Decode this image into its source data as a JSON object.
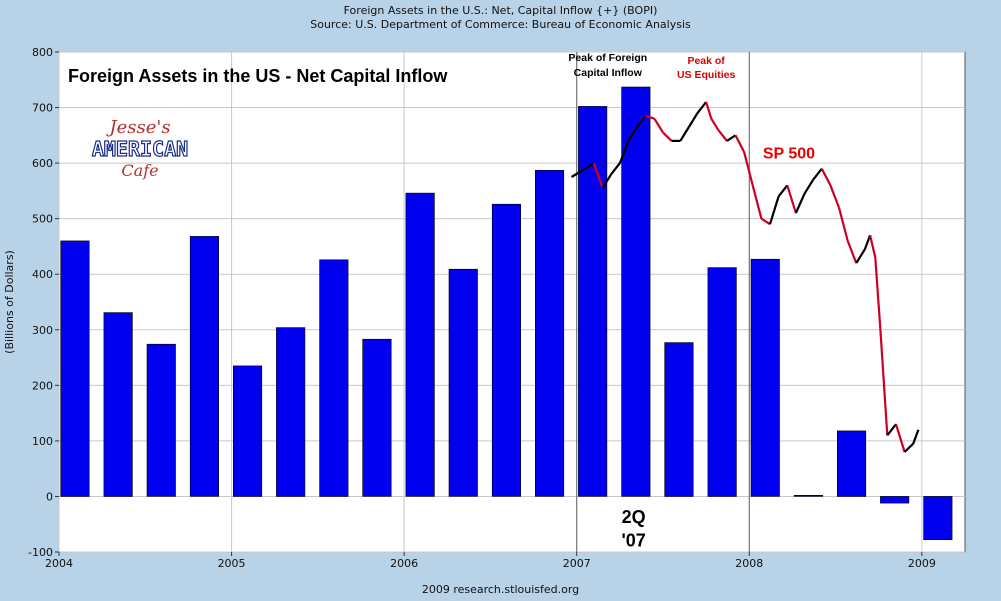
{
  "header": {
    "title": "Foreign Assets in the U.S.: Net, Capital Inflow {+} (BOPI)",
    "source": "Source: U.S. Department of Commerce: Bureau of Economic Analysis"
  },
  "footer": "2009 research.stlouisfed.org",
  "chart_data": {
    "type": "bar",
    "title": "Foreign Assets in the US - Net Capital Inflow",
    "ylabel": "(Billions of Dollars)",
    "xlabel": "",
    "ylim": [
      -100,
      800
    ],
    "yticks": [
      -100,
      0,
      100,
      200,
      300,
      400,
      500,
      600,
      700,
      800
    ],
    "xlim": [
      2004.0,
      2009.25
    ],
    "xticks": [
      2004,
      2005,
      2006,
      2007,
      2008,
      2009
    ],
    "grid": true,
    "bar_color": "#0000ee",
    "series": [
      {
        "quarters": [
          "2004Q1",
          "2004Q2",
          "2004Q3",
          "2004Q4",
          "2005Q1",
          "2005Q2",
          "2005Q3",
          "2005Q4",
          "2006Q1",
          "2006Q2",
          "2006Q3",
          "2006Q4",
          "2007Q1",
          "2007Q2",
          "2007Q3",
          "2007Q4",
          "2008Q1",
          "2008Q2",
          "2008Q3",
          "2008Q4",
          "2009Q1"
        ],
        "x": [
          2004.0,
          2004.25,
          2004.5,
          2004.75,
          2005.0,
          2005.25,
          2005.5,
          2005.75,
          2006.0,
          2006.25,
          2006.5,
          2006.75,
          2007.0,
          2007.25,
          2007.5,
          2007.75,
          2008.0,
          2008.25,
          2008.5,
          2008.75,
          2009.0
        ],
        "values": [
          460,
          331,
          274,
          468,
          235,
          304,
          426,
          283,
          546,
          409,
          526,
          587,
          702,
          737,
          277,
          412,
          427,
          2,
          118,
          -12,
          -78
        ]
      }
    ],
    "overlay_series": {
      "name": "SP 500",
      "color_up": "#000000",
      "color_down": "#cc0022",
      "x": [
        2006.97,
        2007.05,
        2007.1,
        2007.15,
        2007.2,
        2007.25,
        2007.3,
        2007.35,
        2007.4,
        2007.45,
        2007.5,
        2007.55,
        2007.6,
        2007.65,
        2007.7,
        2007.75,
        2007.78,
        2007.82,
        2007.87,
        2007.92,
        2007.97,
        2008.02,
        2008.07,
        2008.12,
        2008.17,
        2008.22,
        2008.27,
        2008.32,
        2008.37,
        2008.42,
        2008.47,
        2008.52,
        2008.57,
        2008.62,
        2008.67,
        2008.7,
        2008.73,
        2008.76,
        2008.8,
        2008.85,
        2008.9,
        2008.95,
        2008.98
      ],
      "values": [
        575,
        590,
        600,
        555,
        580,
        600,
        640,
        665,
        685,
        680,
        655,
        640,
        640,
        665,
        690,
        710,
        680,
        660,
        640,
        650,
        620,
        560,
        500,
        490,
        540,
        560,
        510,
        545,
        570,
        590,
        560,
        520,
        460,
        420,
        445,
        470,
        430,
        300,
        110,
        130,
        80,
        95,
        120
      ]
    },
    "annotations": [
      {
        "text": "Peak of Foreign",
        "x": 2007.18,
        "y": 784,
        "color": "#000000"
      },
      {
        "text": "Capital Inflow",
        "x": 2007.18,
        "y": 757,
        "color": "#000000"
      },
      {
        "text": "Peak of",
        "x": 2007.75,
        "y": 778,
        "color": "#dd0000"
      },
      {
        "text": "US Equities",
        "x": 2007.75,
        "y": 753,
        "color": "#dd0000"
      },
      {
        "text": "SP 500",
        "x": 2008.23,
        "y": 608,
        "color": "#ee0000"
      },
      {
        "text": "2Q",
        "x": 2007.33,
        "y": -48,
        "color": "#000000"
      },
      {
        "text": "'07",
        "x": 2007.33,
        "y": -90,
        "color": "#000000"
      }
    ],
    "vlines": [
      2007.0,
      2008.0
    ],
    "logo": {
      "line1": "Jesse's",
      "line2": "AMERICAN",
      "line3": "Cafe"
    }
  }
}
